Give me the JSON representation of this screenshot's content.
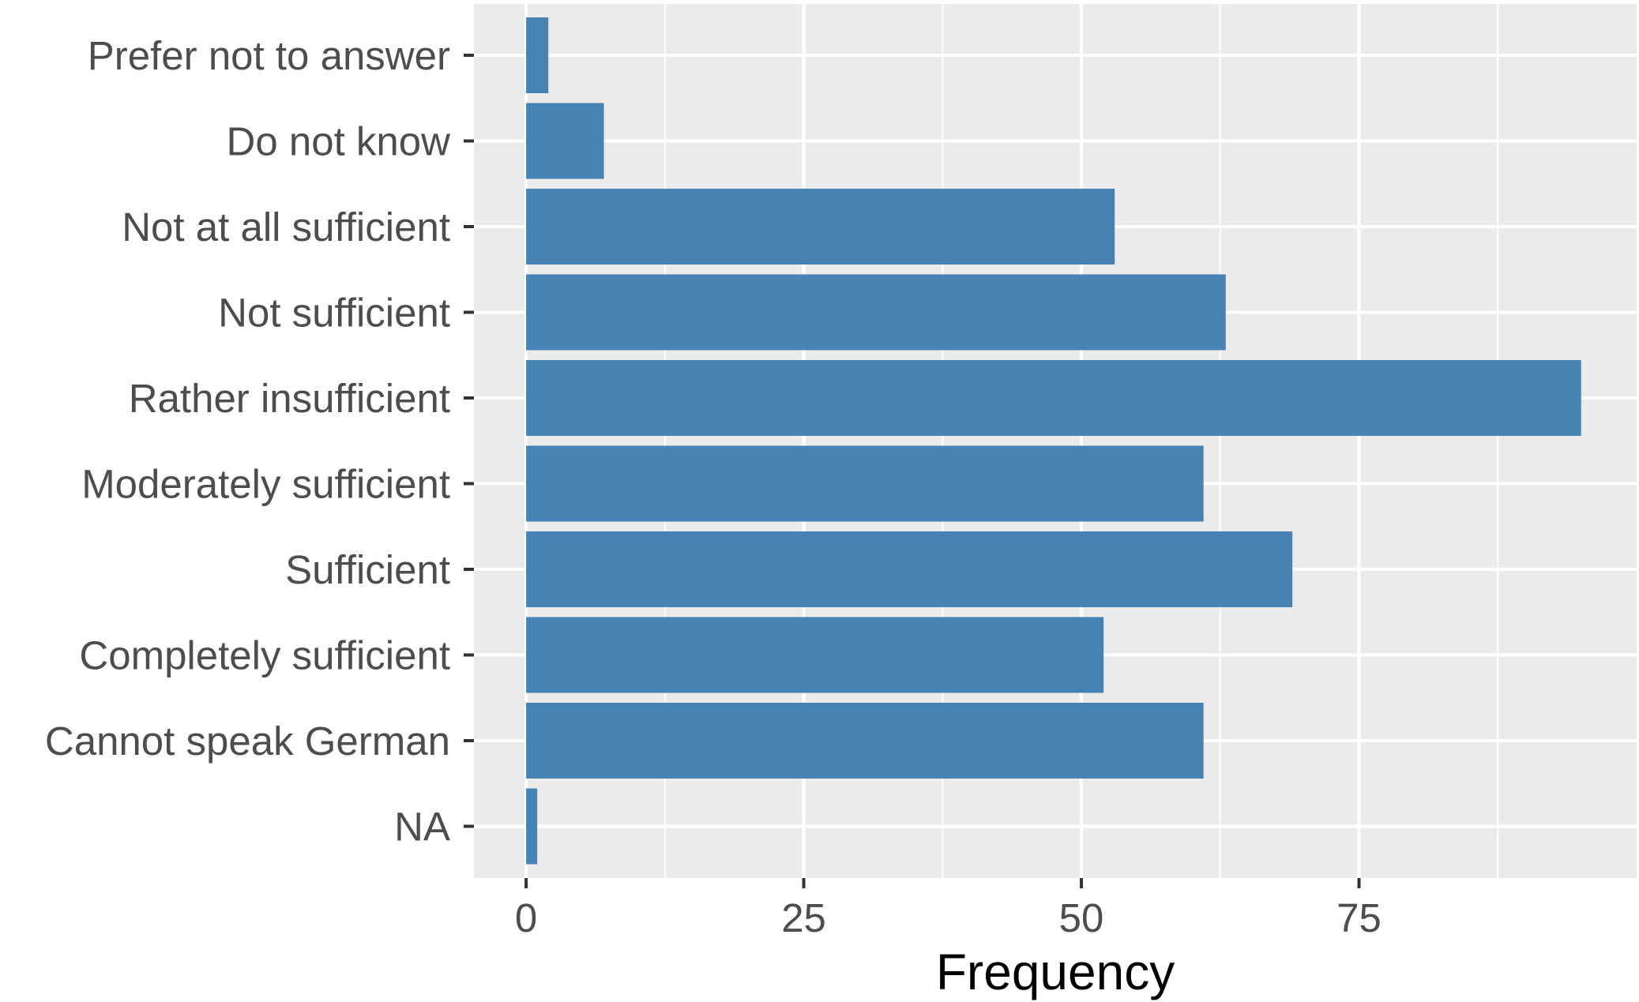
{
  "chart_data": {
    "type": "bar",
    "orientation": "horizontal",
    "categories": [
      "Prefer not to answer",
      "Do not know",
      "Not at all sufficient",
      "Not sufficient",
      "Rather insufficient",
      "Moderately sufficient",
      "Sufficient",
      "Completely sufficient",
      "Cannot speak German",
      "NA"
    ],
    "values": [
      2,
      7,
      53,
      63,
      95,
      61,
      69,
      52,
      61,
      1
    ],
    "xlabel": "Frequency",
    "ylabel": "",
    "xlim": [
      -4.7,
      100
    ],
    "x_ticks": [
      0,
      25,
      50,
      75
    ],
    "x_tick_labels": [
      "0",
      "25",
      "50",
      "75"
    ],
    "grid": true,
    "legend": "none",
    "colors": {
      "bar": "#4682b4",
      "panel_background": "#ebebeb",
      "grid": "#ffffff",
      "tick_text": "#4d4d4d",
      "title_text": "#000000"
    }
  }
}
